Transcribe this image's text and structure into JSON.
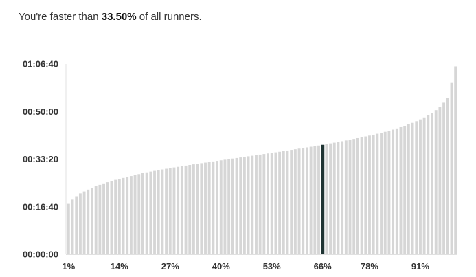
{
  "headline": {
    "prefix": "You're faster than ",
    "percent": "33.50%",
    "suffix": " of all runners."
  },
  "colors": {
    "bar": "#d6d6d6",
    "highlight": "#1f3433",
    "axis": "#e0e0e0",
    "text": "#333333"
  },
  "chart_data": {
    "type": "bar",
    "title": "",
    "xlabel": "",
    "ylabel": "",
    "y_unit": "seconds",
    "ylim": [
      0,
      4000
    ],
    "y_ticks": [
      {
        "value": 0,
        "label": "00:00:00"
      },
      {
        "value": 1000,
        "label": "00:16:40"
      },
      {
        "value": 2000,
        "label": "00:33:20"
      },
      {
        "value": 3000,
        "label": "00:50:00"
      },
      {
        "value": 4000,
        "label": "01:06:40"
      }
    ],
    "x_ticks": [
      {
        "percentile": 1,
        "label": "1%"
      },
      {
        "percentile": 14,
        "label": "14%"
      },
      {
        "percentile": 27,
        "label": "27%"
      },
      {
        "percentile": 40,
        "label": "40%"
      },
      {
        "percentile": 53,
        "label": "53%"
      },
      {
        "percentile": 66,
        "label": "66%"
      },
      {
        "percentile": 78,
        "label": "78%"
      },
      {
        "percentile": 91,
        "label": "91%"
      }
    ],
    "highlight_percentile": 66,
    "series": [
      {
        "percentiles": [
          1,
          2,
          3,
          4,
          5,
          6,
          7,
          8,
          9,
          10,
          11,
          12,
          13,
          14,
          15,
          16,
          17,
          18,
          19,
          20,
          21,
          22,
          23,
          24,
          25,
          26,
          27,
          28,
          29,
          30,
          31,
          32,
          33,
          34,
          35,
          36,
          37,
          38,
          39,
          40,
          41,
          42,
          43,
          44,
          45,
          46,
          47,
          48,
          49,
          50,
          51,
          52,
          53,
          54,
          55,
          56,
          57,
          58,
          59,
          60,
          61,
          62,
          63,
          64,
          65,
          66,
          67,
          68,
          69,
          70,
          71,
          72,
          73,
          74,
          75,
          76,
          77,
          78,
          79,
          80,
          81,
          82,
          83,
          84,
          85,
          86,
          87,
          88,
          89,
          90,
          91,
          92,
          93,
          94,
          95,
          96,
          97,
          98,
          99,
          100
        ],
        "values": [
          1060,
          1150,
          1220,
          1280,
          1320,
          1360,
          1400,
          1430,
          1460,
          1490,
          1515,
          1540,
          1565,
          1585,
          1605,
          1625,
          1645,
          1665,
          1685,
          1705,
          1722,
          1738,
          1753,
          1768,
          1783,
          1797,
          1811,
          1825,
          1838,
          1851,
          1864,
          1877,
          1890,
          1903,
          1915,
          1927,
          1939,
          1951,
          1963,
          1975,
          1987,
          1999,
          2011,
          2023,
          2035,
          2047,
          2059,
          2071,
          2083,
          2095,
          2107,
          2119,
          2131,
          2143,
          2155,
          2168,
          2181,
          2194,
          2207,
          2220,
          2233,
          2246,
          2259,
          2272,
          2285,
          2300,
          2315,
          2330,
          2345,
          2360,
          2376,
          2392,
          2408,
          2424,
          2441,
          2458,
          2476,
          2494,
          2513,
          2533,
          2553,
          2574,
          2596,
          2620,
          2645,
          2672,
          2700,
          2730,
          2762,
          2797,
          2835,
          2877,
          2922,
          2972,
          3030,
          3100,
          3185,
          3290,
          3600,
          3950
        ]
      }
    ]
  }
}
